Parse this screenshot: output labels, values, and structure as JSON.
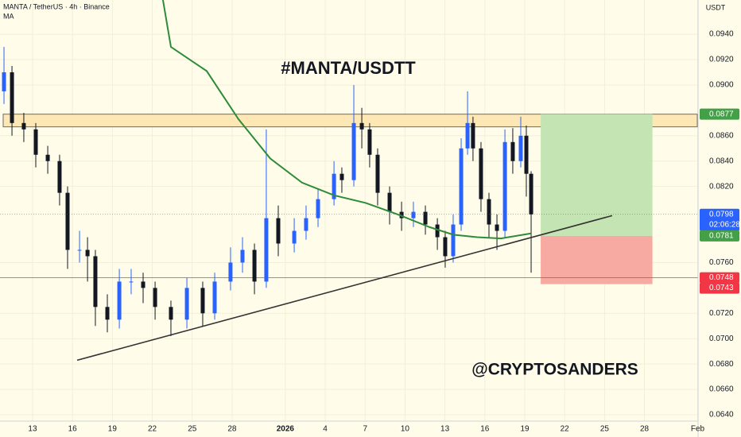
{
  "chart_data": {
    "type": "candlestick",
    "header": "MANTA / TetherUS · 4h · Binance",
    "indicator": "MA",
    "currency": "USDT",
    "title": "#MANTA/USDTT",
    "watermark": "@CRYPTOSANDERS",
    "countdown": "02:06:28",
    "up_color": "#2962ff",
    "down_color": "#131722",
    "xlim": [
      10.55,
      63.03
    ],
    "ylim": [
      0.0635,
      0.0967
    ],
    "xticks": [
      {
        "value": 13,
        "label": "13"
      },
      {
        "value": 16,
        "label": "16"
      },
      {
        "value": 19,
        "label": "19"
      },
      {
        "value": 22,
        "label": "22"
      },
      {
        "value": 25,
        "label": "25"
      },
      {
        "value": 28,
        "label": "28"
      },
      {
        "value": 32,
        "label": "2026"
      },
      {
        "value": 35,
        "label": "4"
      },
      {
        "value": 38,
        "label": "7"
      },
      {
        "value": 41,
        "label": "10"
      },
      {
        "value": 44,
        "label": "13"
      },
      {
        "value": 47,
        "label": "16"
      },
      {
        "value": 50,
        "label": "19"
      },
      {
        "value": 53,
        "label": "22"
      },
      {
        "value": 56,
        "label": "25"
      },
      {
        "value": 59,
        "label": "28"
      },
      {
        "value": 63,
        "label": "Feb"
      }
    ],
    "yticks": [
      {
        "value": 0.094,
        "label": "0.0940"
      },
      {
        "value": 0.092,
        "label": "0.0920"
      },
      {
        "value": 0.09,
        "label": "0.0900"
      },
      {
        "value": 0.086,
        "label": "0.0860"
      },
      {
        "value": 0.084,
        "label": "0.0840"
      },
      {
        "value": 0.082,
        "label": "0.0820"
      },
      {
        "value": 0.076,
        "label": "0.0760"
      },
      {
        "value": 0.072,
        "label": "0.0720"
      },
      {
        "value": 0.07,
        "label": "0.0700"
      },
      {
        "value": 0.068,
        "label": "0.0680"
      },
      {
        "value": 0.066,
        "label": "0.0660"
      },
      {
        "value": 0.064,
        "label": "0.0640"
      }
    ],
    "candles": {
      "x": [
        10.85,
        11.45,
        12.34,
        13.24,
        14.14,
        15.03,
        15.63,
        16.53,
        17.13,
        17.72,
        18.62,
        19.52,
        20.41,
        21.31,
        22.21,
        23.4,
        24.6,
        25.79,
        26.69,
        27.88,
        28.78,
        29.68,
        30.57,
        31.47,
        32.67,
        33.56,
        34.46,
        35.66,
        36.25,
        37.15,
        37.75,
        38.34,
        38.94,
        39.84,
        40.74,
        41.63,
        42.53,
        43.43,
        44.02,
        44.62,
        45.22,
        45.7,
        46.11,
        46.71,
        47.31,
        47.91,
        48.51,
        49.1,
        49.7,
        50.12,
        50.48
      ],
      "open": [
        0.0895,
        0.091,
        0.087,
        0.0865,
        0.0845,
        0.084,
        0.0815,
        0.077,
        0.077,
        0.0765,
        0.0725,
        0.0715,
        0.0745,
        0.0745,
        0.074,
        0.0725,
        0.0715,
        0.074,
        0.072,
        0.0745,
        0.076,
        0.077,
        0.0745,
        0.0795,
        0.0775,
        0.0785,
        0.0795,
        0.081,
        0.083,
        0.0825,
        0.087,
        0.0865,
        0.0845,
        0.0815,
        0.08,
        0.0795,
        0.08,
        0.079,
        0.078,
        0.0765,
        0.079,
        0.085,
        0.087,
        0.085,
        0.081,
        0.079,
        0.0785,
        0.0855,
        0.084,
        0.086,
        0.083
      ],
      "high": [
        0.093,
        0.0915,
        0.0878,
        0.087,
        0.0852,
        0.0845,
        0.082,
        0.0785,
        0.078,
        0.077,
        0.0735,
        0.0755,
        0.0755,
        0.0752,
        0.0745,
        0.073,
        0.0748,
        0.0745,
        0.0752,
        0.0772,
        0.078,
        0.0775,
        0.0865,
        0.0805,
        0.0795,
        0.0805,
        0.0818,
        0.084,
        0.0835,
        0.09,
        0.0882,
        0.087,
        0.085,
        0.082,
        0.0808,
        0.0808,
        0.0805,
        0.0795,
        0.0785,
        0.0798,
        0.0858,
        0.0895,
        0.0875,
        0.0855,
        0.0815,
        0.0798,
        0.0865,
        0.0866,
        0.0875,
        0.0868,
        0.0832
      ],
      "low": [
        0.0885,
        0.086,
        0.0855,
        0.0835,
        0.083,
        0.0805,
        0.0755,
        0.076,
        0.0745,
        0.071,
        0.0705,
        0.0708,
        0.0735,
        0.0728,
        0.0715,
        0.0702,
        0.0708,
        0.071,
        0.0715,
        0.0738,
        0.0752,
        0.0735,
        0.074,
        0.0765,
        0.0768,
        0.0778,
        0.0788,
        0.0805,
        0.0815,
        0.082,
        0.085,
        0.0835,
        0.0805,
        0.079,
        0.0785,
        0.0788,
        0.0782,
        0.077,
        0.0756,
        0.076,
        0.0785,
        0.0845,
        0.084,
        0.08,
        0.078,
        0.077,
        0.078,
        0.083,
        0.0835,
        0.0812,
        0.0752
      ],
      "close": [
        0.091,
        0.087,
        0.0865,
        0.0845,
        0.084,
        0.0815,
        0.077,
        0.077,
        0.0765,
        0.0725,
        0.0715,
        0.0745,
        0.0745,
        0.074,
        0.0725,
        0.0715,
        0.074,
        0.072,
        0.0745,
        0.076,
        0.077,
        0.0745,
        0.0795,
        0.0775,
        0.0785,
        0.0795,
        0.081,
        0.083,
        0.0825,
        0.087,
        0.0865,
        0.0845,
        0.0815,
        0.08,
        0.0795,
        0.08,
        0.079,
        0.078,
        0.0765,
        0.079,
        0.085,
        0.087,
        0.085,
        0.081,
        0.079,
        0.0785,
        0.0855,
        0.084,
        0.086,
        0.083,
        0.0798
      ]
    },
    "moving_average": {
      "color": "#2e8b3a",
      "x": [
        22.8,
        23.4,
        26.09,
        28.48,
        30.87,
        33.26,
        35.66,
        38.05,
        40.44,
        42.83,
        44.62,
        46.41,
        48.21,
        50.48
      ],
      "values": [
        0.0967,
        0.093,
        0.0911,
        0.0873,
        0.0842,
        0.0823,
        0.0813,
        0.0807,
        0.0798,
        0.0788,
        0.0782,
        0.078,
        0.0779,
        0.0783
      ]
    },
    "trend_line": {
      "color": "#333333",
      "x": [
        16.35,
        56.57
      ],
      "values": [
        0.0683,
        0.0797
      ]
    },
    "resistance_zone": {
      "low": 0.0867,
      "high": 0.0877
    },
    "support_level": 0.0748,
    "position": {
      "x": [
        51.2,
        59.6
      ],
      "target": 0.0877,
      "entry": 0.0781,
      "stop": 0.0743
    },
    "price_labels": [
      {
        "value": 0.0877,
        "color": "#43a047"
      },
      {
        "value": 0.0798,
        "color": "#2962ff"
      },
      {
        "value": 0.0781,
        "color": "#43a047"
      },
      {
        "value": 0.0748,
        "color": "#f23645"
      },
      {
        "value": 0.0743,
        "color": "#f23645"
      }
    ]
  }
}
